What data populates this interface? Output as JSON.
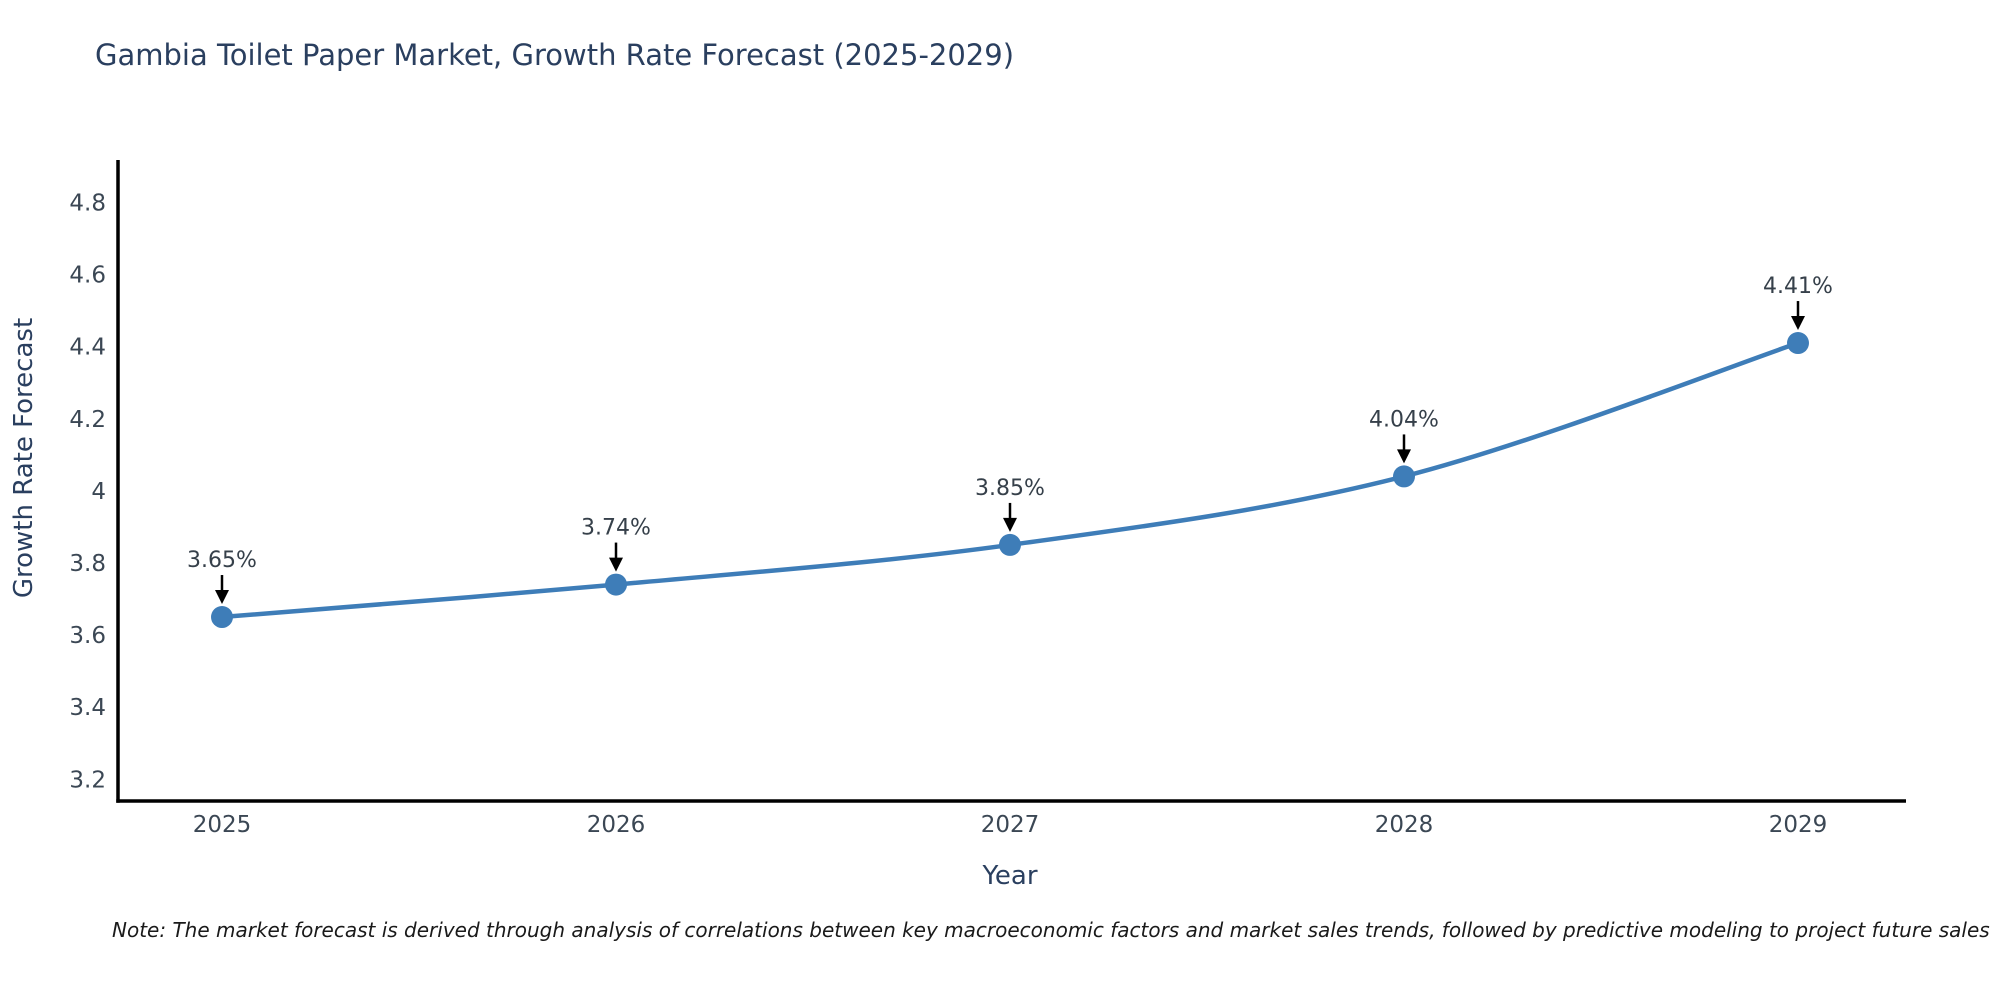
{
  "page": {
    "note": "Note: The market forecast is derived through analysis of correlations between key macroeconomic factors and market sales trends, followed by predictive modeling to project future sales"
  },
  "chart_data": {
    "type": "line",
    "title": "Gambia Toilet Paper Market, Growth Rate Forecast (2025-2029)",
    "xlabel": "Year",
    "ylabel": "Growth Rate Forecast",
    "x": [
      "2025",
      "2026",
      "2027",
      "2028",
      "2029"
    ],
    "values": [
      3.65,
      3.74,
      3.85,
      4.04,
      4.41
    ],
    "point_labels": [
      "3.65%",
      "3.74%",
      "3.85%",
      "4.04%",
      "4.41%"
    ],
    "y_ticks": [
      "3.2",
      "3.4",
      "3.6",
      "3.8",
      "4",
      "4.2",
      "4.4",
      "4.6",
      "4.8"
    ],
    "y_tick_values": [
      3.2,
      3.4,
      3.6,
      3.8,
      4.0,
      4.2,
      4.4,
      4.6,
      4.8
    ],
    "ylim": [
      3.14,
      4.92
    ],
    "grid": false,
    "legend": "none",
    "colors": {
      "line": "#3e7db8",
      "marker": "#3e7db8",
      "axis": "#000000",
      "arrow": "#000000"
    }
  }
}
